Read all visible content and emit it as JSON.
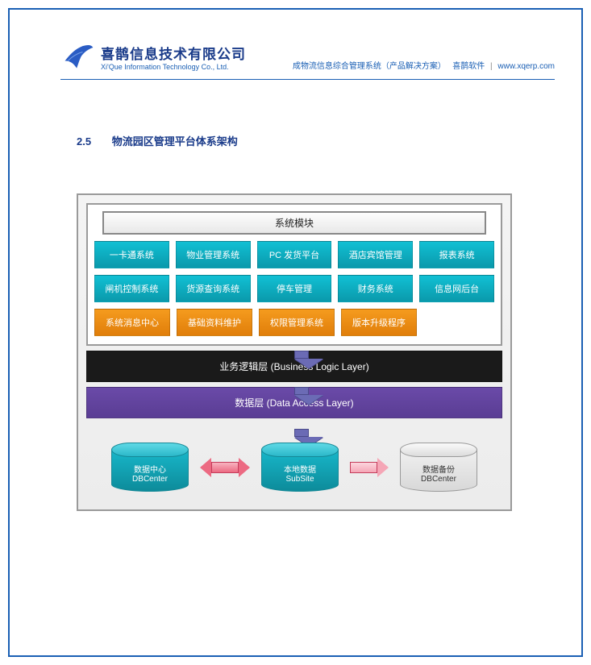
{
  "header": {
    "company_cn": "喜鹊信息技术有限公司",
    "company_en": "Xi'Que Information Technology Co., Ltd.",
    "breadcrumb": "成物流信息综合管理系统（产品解决方案）",
    "brand": "喜鹊软件",
    "url": "www.xqerp.com",
    "logo_color": "#2a5cc4",
    "border_color": "#1a5fb4"
  },
  "section": {
    "number": "2.5",
    "title": "物流园区管理平台体系架构"
  },
  "diagram": {
    "modules_title": "系统模块",
    "colors": {
      "teal": "#0fa8bb",
      "orange": "#ef8c12",
      "black": "#1a1a1a",
      "purple": "#5c3f98",
      "arrow_down": "#6b6bb5",
      "arrow_red": "#ec6a82",
      "arrow_pink": "#f5a6b6",
      "gray_border": "#9a9a9a",
      "bg_gradient_top": "#f4f4f4",
      "bg_gradient_bottom": "#ececec"
    },
    "module_rows": [
      [
        {
          "label": "一卡通系统",
          "style": "teal"
        },
        {
          "label": "物业管理系统",
          "style": "teal"
        },
        {
          "label": "PC 发货平台",
          "style": "teal"
        },
        {
          "label": "酒店宾馆管理",
          "style": "teal"
        },
        {
          "label": "报表系统",
          "style": "teal"
        }
      ],
      [
        {
          "label": "闸机控制系统",
          "style": "teal"
        },
        {
          "label": "货源查询系统",
          "style": "teal"
        },
        {
          "label": "停车管理",
          "style": "teal"
        },
        {
          "label": "财务系统",
          "style": "teal"
        },
        {
          "label": "信息网后台",
          "style": "teal"
        }
      ],
      [
        {
          "label": "系统消息中心",
          "style": "orange"
        },
        {
          "label": "基础资料维护",
          "style": "orange"
        },
        {
          "label": "权限管理系统",
          "style": "orange"
        },
        {
          "label": "版本升级程序",
          "style": "orange"
        },
        {
          "label": "",
          "style": "spacer"
        }
      ]
    ],
    "logic_layer": "业务逻辑层  (Business Logic Layer)",
    "data_layer": "数据层 (Data Access Layer)",
    "databases": {
      "left": {
        "line1": "数据中心",
        "line2": "DBCenter",
        "style": "teal"
      },
      "center": {
        "line1": "本地数据",
        "line2": "SubSite",
        "style": "teal"
      },
      "right": {
        "line1": "数据备份",
        "line2": "DBCenter",
        "style": "gray"
      }
    }
  }
}
